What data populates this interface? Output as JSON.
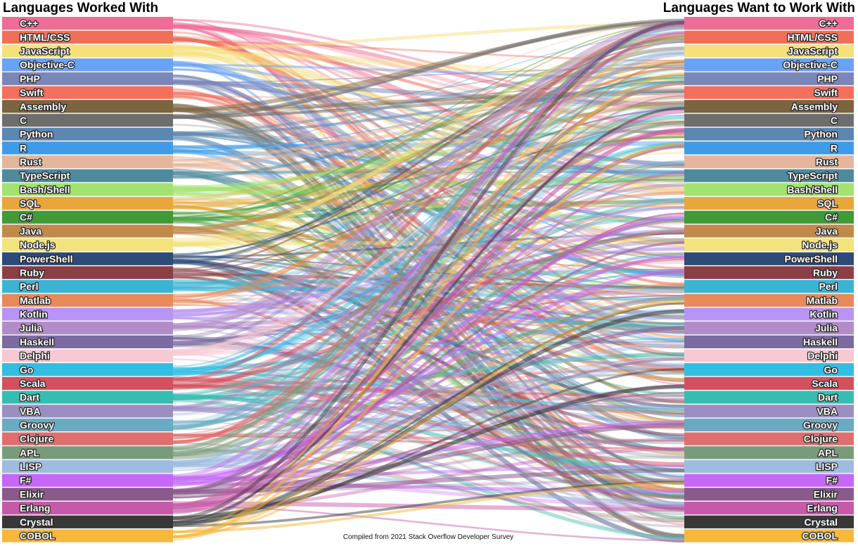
{
  "chart_data": {
    "type": "sankey",
    "title_left": "Languages Worked With",
    "title_right": "Languages Want to Work With",
    "note": "Compiled from 2021 Stack Overflow Developer Survey",
    "languages": [
      {
        "name": "C++",
        "color": "#f06b95"
      },
      {
        "name": "HTML/CSS",
        "color": "#ef6f5b"
      },
      {
        "name": "JavaScript",
        "color": "#f5e07a"
      },
      {
        "name": "Objective-C",
        "color": "#6aa2f5"
      },
      {
        "name": "PHP",
        "color": "#7a86b8"
      },
      {
        "name": "Swift",
        "color": "#f2705c"
      },
      {
        "name": "Assembly",
        "color": "#7a6540"
      },
      {
        "name": "C",
        "color": "#6e6e6e"
      },
      {
        "name": "Python",
        "color": "#5b87b0"
      },
      {
        "name": "R",
        "color": "#3f9be8"
      },
      {
        "name": "Rust",
        "color": "#e6b69c"
      },
      {
        "name": "TypeScript",
        "color": "#4e8a9c"
      },
      {
        "name": "Bash/Shell",
        "color": "#a2e36f"
      },
      {
        "name": "SQL",
        "color": "#e8a73a"
      },
      {
        "name": "C#",
        "color": "#3f9a37"
      },
      {
        "name": "Java",
        "color": "#c08a4a"
      },
      {
        "name": "Node.js",
        "color": "#f2e37c"
      },
      {
        "name": "PowerShell",
        "color": "#2d4a78"
      },
      {
        "name": "Ruby",
        "color": "#8b3e44"
      },
      {
        "name": "Perl",
        "color": "#3bb4d3"
      },
      {
        "name": "Matlab",
        "color": "#e8895a"
      },
      {
        "name": "Kotlin",
        "color": "#b894f5"
      },
      {
        "name": "Julia",
        "color": "#b28cc8"
      },
      {
        "name": "Haskell",
        "color": "#7c6ba0"
      },
      {
        "name": "Delphi",
        "color": "#f7c9d3"
      },
      {
        "name": "Go",
        "color": "#32bde3"
      },
      {
        "name": "Scala",
        "color": "#d3505e"
      },
      {
        "name": "Dart",
        "color": "#36bdb2"
      },
      {
        "name": "VBA",
        "color": "#9b8fc2"
      },
      {
        "name": "Groovy",
        "color": "#6aaac2"
      },
      {
        "name": "Clojure",
        "color": "#e06e6e"
      },
      {
        "name": "APL",
        "color": "#7a9b7a"
      },
      {
        "name": "LISP",
        "color": "#9fbce0"
      },
      {
        "name": "F#",
        "color": "#c468f5"
      },
      {
        "name": "Elixir",
        "color": "#8a5a8c"
      },
      {
        "name": "Erlang",
        "color": "#c65aa8"
      },
      {
        "name": "Crystal",
        "color": "#383838"
      },
      {
        "name": "COBOL",
        "color": "#f6b73a"
      }
    ]
  }
}
